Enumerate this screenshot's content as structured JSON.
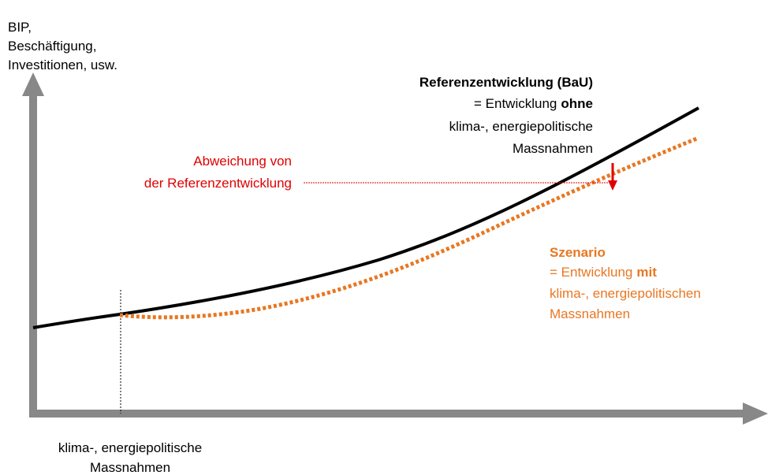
{
  "y_axis_label": [
    "BIP,",
    "Beschäftigung,",
    "Investitionen, usw."
  ],
  "reference": {
    "title": "Referenzentwicklung (BaU)",
    "line1": "= Entwicklung",
    "line1_bold": "ohne",
    "line2": "klima-, energiepolitische",
    "line3": "Massnahmen"
  },
  "deviation": [
    "Abweichung von",
    "der Referenzentwicklung"
  ],
  "scenario": {
    "title": "Szenario",
    "line1": "= Entwicklung",
    "line1_bold": "mit",
    "line2": "klima-, energiepolitischen",
    "line3": "Massnahmen"
  },
  "x_axis_label": [
    "klima-, energiepolitische",
    "Massnahmen"
  ]
}
